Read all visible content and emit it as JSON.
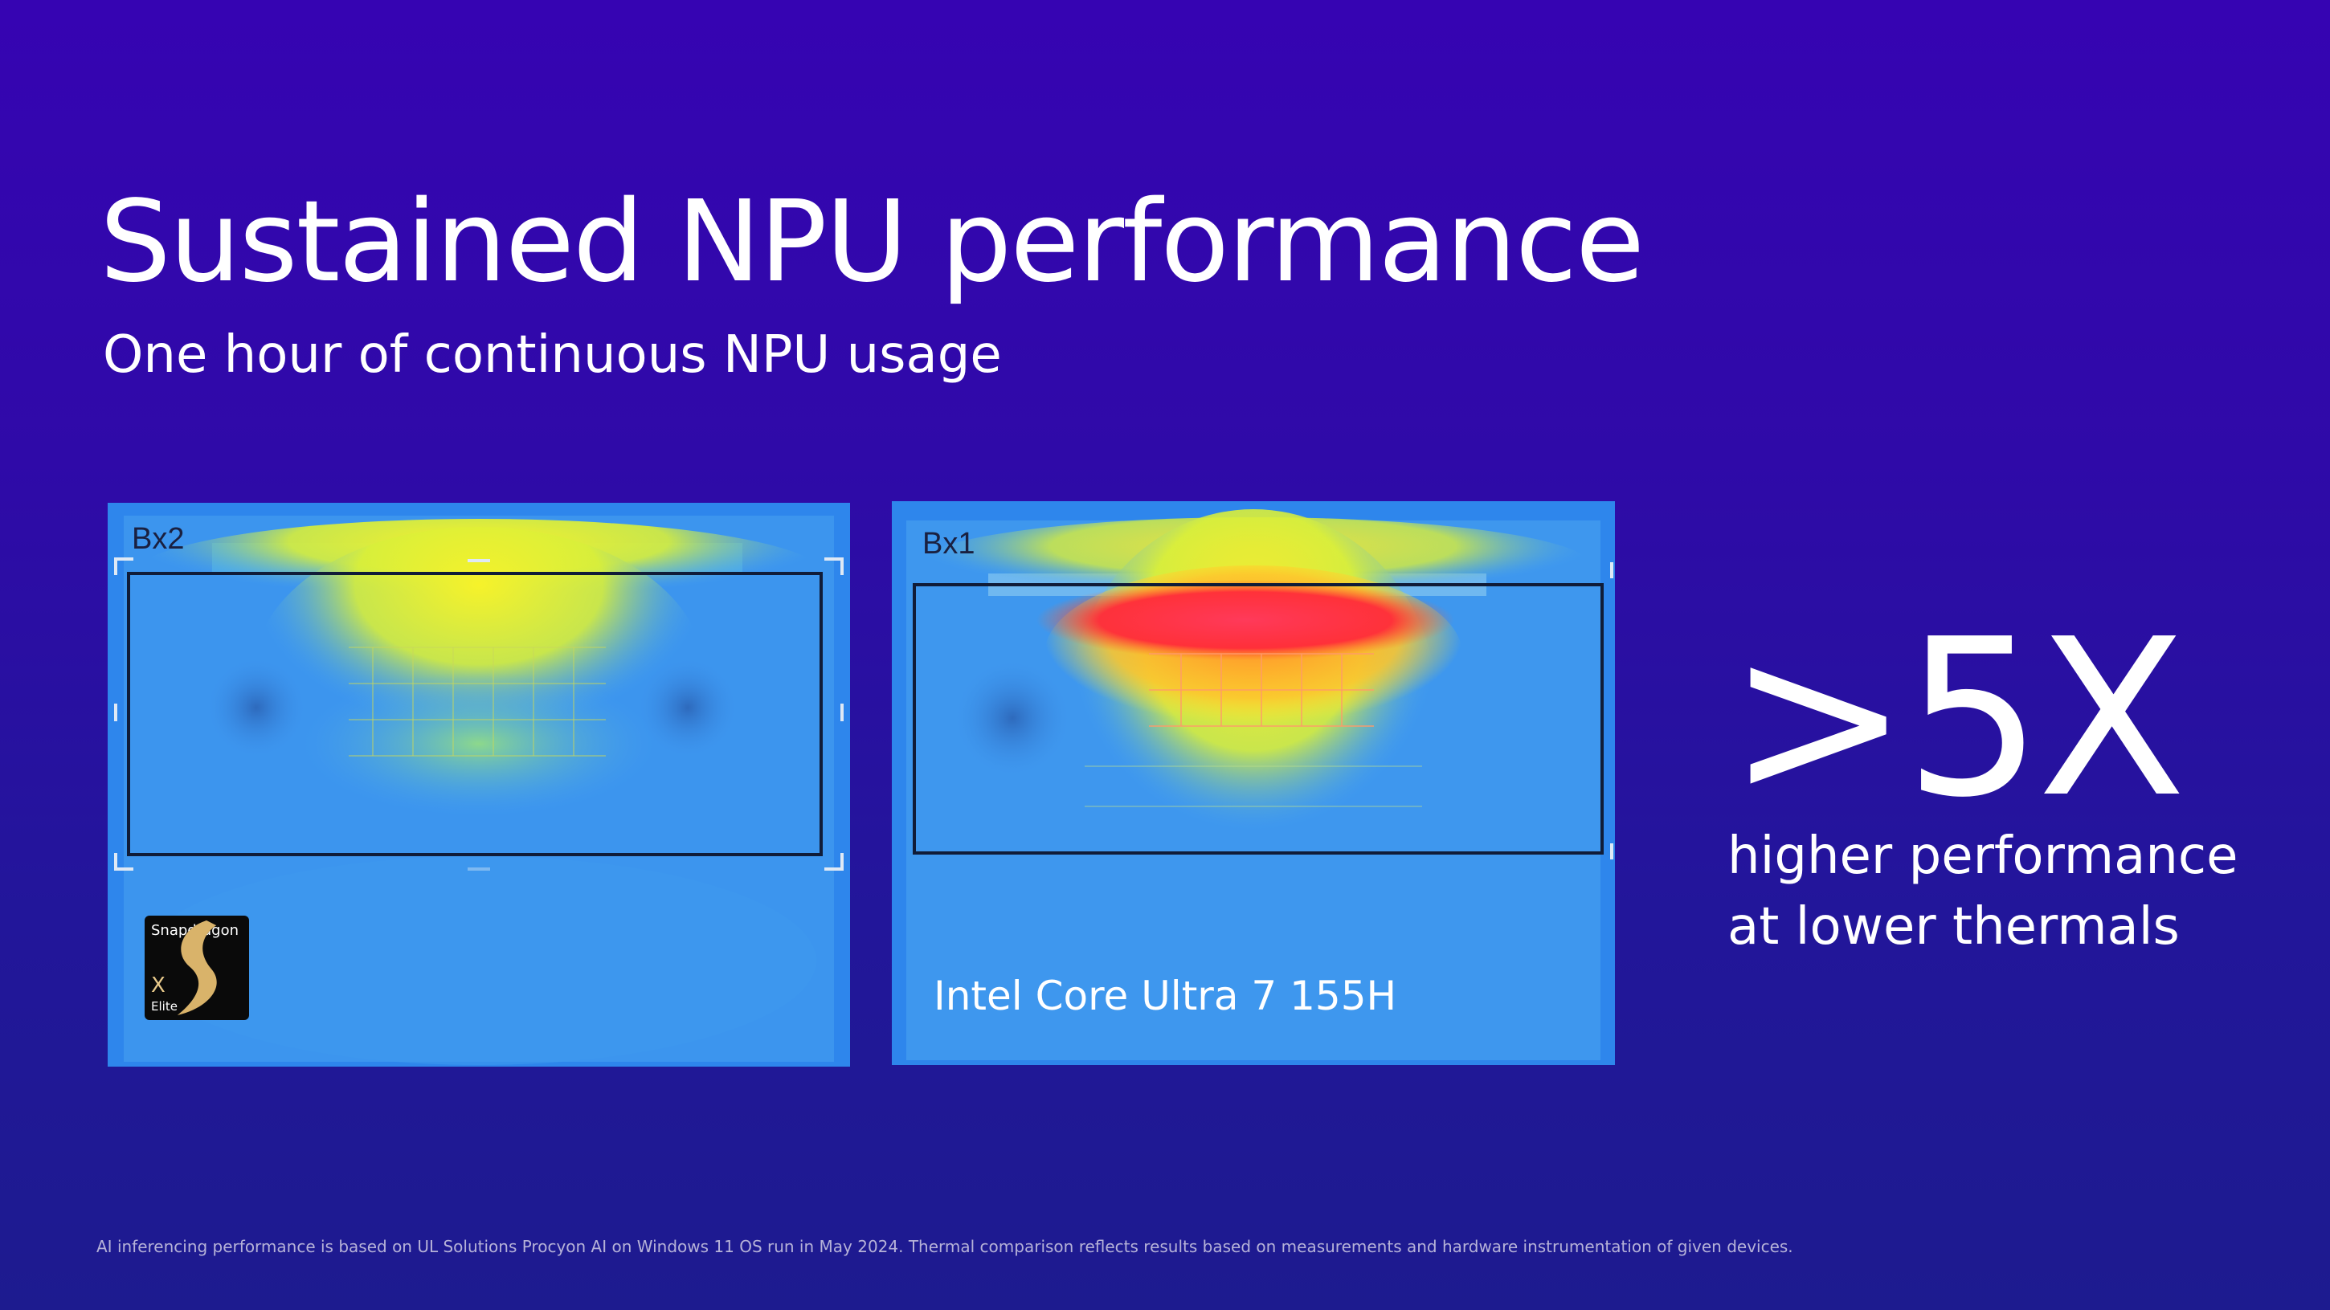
{
  "slide": {
    "title": "Sustained NPU performance",
    "subtitle": "One hour of continuous NPU usage"
  },
  "thermal_images": [
    {
      "box_label": "Bx2",
      "device_badge": {
        "brand": "Snapdragon",
        "model": "X",
        "tier": "Elite"
      }
    },
    {
      "box_label": "Bx1",
      "device_label": "Intel Core Ultra 7 155H"
    }
  ],
  "highlight": {
    "value": ">5X",
    "line1": "higher performance",
    "line2": "at lower thermals"
  },
  "footnote": "AI inferencing performance is based on UL Solutions Procyon AI on Windows 11 OS run in May 2024. Thermal comparison reflects results based on measurements and hardware instrumentation of given devices.",
  "colors": {
    "background_top": "#3604b2",
    "background_bottom": "#1d1b8f",
    "thermal_cool": "#2f8ff0",
    "thermal_warm": "#f3ee2c",
    "thermal_hot": "#ff2a3a"
  }
}
